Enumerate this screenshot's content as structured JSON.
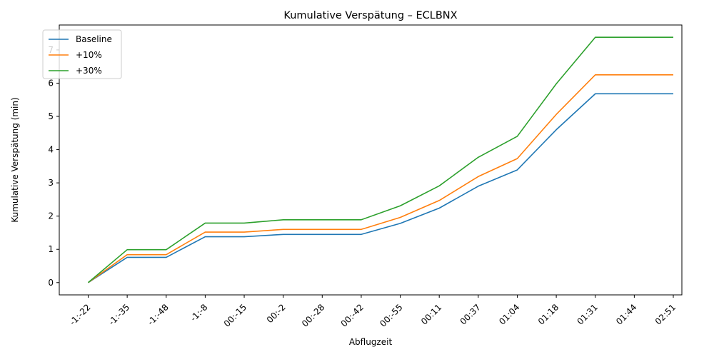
{
  "chart_data": {
    "type": "line",
    "title": "Kumulative Verspätung – ECLBNX",
    "xlabel": "Abflugzeit",
    "ylabel": "Kumulative Verspätung (min)",
    "categories": [
      "-1:-22",
      "-1:-35",
      "-1:-48",
      "-1:-8",
      "00:-15",
      "00:-2",
      "00:-28",
      "00:-42",
      "00:-55",
      "00:11",
      "00:37",
      "01:04",
      "01:18",
      "01:31",
      "01:44",
      "02:51"
    ],
    "ylim": [
      -0.37,
      7.75
    ],
    "yticks": [
      0,
      1,
      2,
      3,
      4,
      5,
      6,
      7
    ],
    "grid": false,
    "legend_position": "top-left",
    "series": [
      {
        "name": "Baseline",
        "color": "#1f77b4",
        "values": [
          0,
          0.76,
          0.76,
          1.38,
          1.38,
          1.45,
          1.45,
          1.45,
          1.78,
          2.24,
          2.9,
          3.39,
          4.6,
          5.68,
          5.68,
          5.68
        ]
      },
      {
        "name": "+10%",
        "color": "#ff7f0e",
        "values": [
          0,
          0.84,
          0.84,
          1.52,
          1.52,
          1.6,
          1.6,
          1.6,
          1.96,
          2.47,
          3.19,
          3.73,
          5.06,
          6.25,
          6.25,
          6.25
        ]
      },
      {
        "name": "+30%",
        "color": "#2ca02c",
        "values": [
          0,
          0.99,
          0.99,
          1.79,
          1.79,
          1.89,
          1.89,
          1.89,
          2.31,
          2.91,
          3.77,
          4.4,
          5.98,
          7.38,
          7.38,
          7.38
        ]
      }
    ]
  }
}
